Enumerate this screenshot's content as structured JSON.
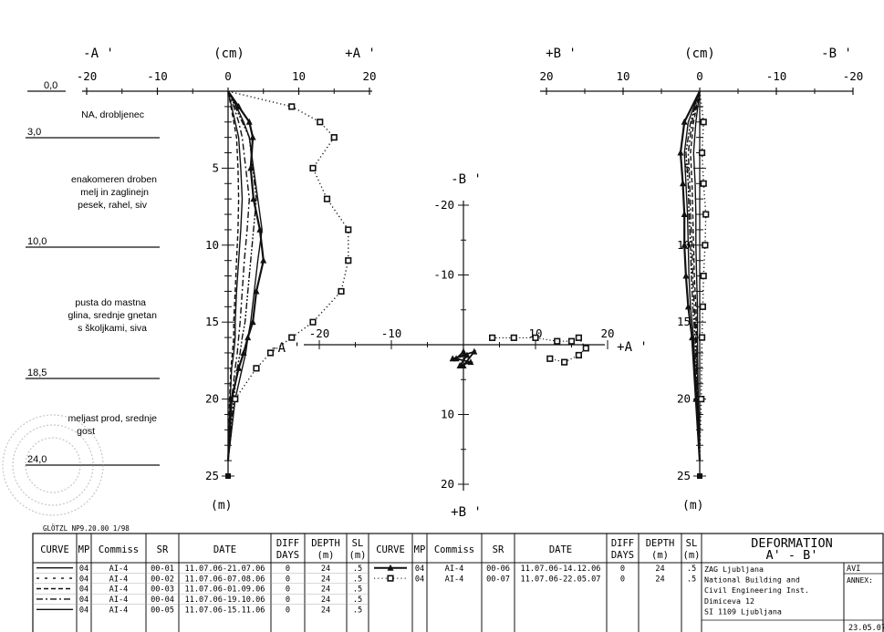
{
  "chart_data": [
    {
      "panel": "profile-A",
      "type": "line",
      "top_labels": {
        "left": "-A '",
        "unit": "(cm)",
        "right": "+A '"
      },
      "x_ticks": [
        "-20",
        "-10",
        "0",
        "10",
        "20"
      ],
      "y_ticks": [
        "5",
        "10",
        "15",
        "20",
        "25"
      ],
      "y_unit": "(m)",
      "xlim": [
        -20,
        20
      ],
      "ylim": [
        0,
        25
      ],
      "x_axis_at_depth": 0,
      "series": [
        {
          "name": "00-01",
          "style": "solid",
          "x": [
            0,
            0.5,
            1,
            1.5,
            1.8,
            2,
            1.8,
            1.5,
            1.2,
            1,
            1,
            0.8,
            0.5,
            0.3,
            0
          ],
          "y": [
            0,
            1,
            2,
            3,
            5,
            7,
            9,
            11,
            13,
            15,
            16,
            17,
            18,
            20,
            24
          ]
        },
        {
          "name": "00-02",
          "style": "dashed",
          "x": [
            0,
            0.4,
            0.8,
            1.2,
            1.4,
            1.5,
            1.4,
            1.2,
            1,
            0.8,
            0.8,
            0.6,
            0.4,
            0.2,
            0
          ],
          "y": [
            0,
            1,
            2,
            3,
            5,
            7,
            9,
            11,
            13,
            15,
            16,
            17,
            18,
            20,
            24
          ]
        },
        {
          "name": "00-03",
          "style": "dashdot",
          "x": [
            0,
            0.8,
            1.5,
            2,
            2.5,
            3,
            2.7,
            2.3,
            2,
            1.7,
            1.5,
            1.3,
            1,
            0.5,
            0
          ],
          "y": [
            0,
            1,
            2,
            3,
            5,
            7,
            9,
            11,
            13,
            15,
            16,
            17,
            18,
            20,
            24
          ]
        },
        {
          "name": "00-04",
          "style": "dashdotdot",
          "x": [
            0,
            1,
            2,
            3,
            3.5,
            4,
            3.6,
            3.2,
            2.8,
            2.4,
            2,
            1.7,
            1.3,
            0.8,
            0
          ],
          "y": [
            0,
            1,
            2,
            3,
            5,
            7,
            9,
            11,
            13,
            15,
            16,
            17,
            18,
            20,
            24
          ]
        },
        {
          "name": "00-05",
          "style": "solid",
          "x": [
            0,
            1.2,
            2.2,
            3,
            3.6,
            4.2,
            4.8,
            4.2,
            3.7,
            3.2,
            2.8,
            2.5,
            2,
            1,
            0
          ],
          "y": [
            0,
            1,
            2,
            3,
            5,
            7,
            9,
            11,
            13,
            15,
            16,
            17,
            18,
            20,
            24
          ]
        },
        {
          "name": "00-06",
          "style": "solid",
          "marker": "triangle",
          "x": [
            0,
            1.5,
            3,
            3.5,
            3.2,
            3.6,
            4.5,
            5,
            4,
            3.5,
            2.8,
            2.2,
            1.5,
            0.5,
            0
          ],
          "y": [
            0,
            1,
            2,
            3,
            5,
            7,
            9,
            11,
            13,
            15,
            16,
            17,
            18,
            20,
            24
          ]
        },
        {
          "name": "00-07",
          "style": "dotted",
          "marker": "square",
          "x": [
            0,
            9,
            13,
            15,
            12,
            14,
            17,
            17,
            16,
            12,
            9,
            6,
            4,
            1,
            0
          ],
          "y": [
            0,
            1,
            2,
            3,
            5,
            7,
            9,
            11,
            13,
            15,
            16,
            17,
            18,
            20,
            24
          ]
        }
      ]
    },
    {
      "panel": "profile-B",
      "type": "line",
      "top_labels": {
        "left": "+B '",
        "unit": "(cm)",
        "right": "-B '"
      },
      "x_ticks": [
        "20",
        "10",
        "0",
        "-10",
        "-20"
      ],
      "y_ticks": [
        "5",
        "10",
        "15",
        "20",
        "25"
      ],
      "y_unit": "(m)",
      "xlim": [
        20,
        -20
      ],
      "ylim": [
        0,
        25
      ],
      "series": [
        {
          "name": "00-01",
          "style": "solid",
          "x": [
            0,
            0.5,
            0.8,
            0.6,
            0.5,
            0.5,
            0.4,
            0.3,
            0.3,
            0.2,
            0
          ],
          "y": [
            0,
            2,
            4,
            6,
            8,
            10,
            12,
            14,
            16,
            20,
            24
          ]
        },
        {
          "name": "00-02",
          "style": "dashed",
          "x": [
            0,
            0.8,
            1.2,
            1,
            0.9,
            0.8,
            0.7,
            0.5,
            0.4,
            0.2,
            0
          ],
          "y": [
            0,
            2,
            4,
            6,
            8,
            10,
            12,
            14,
            16,
            20,
            24
          ]
        },
        {
          "name": "00-03",
          "style": "dashdot",
          "x": [
            0,
            1,
            1.5,
            1.3,
            1.2,
            1,
            0.9,
            0.7,
            0.5,
            0.3,
            0
          ],
          "y": [
            0,
            2,
            4,
            6,
            8,
            10,
            12,
            14,
            16,
            20,
            24
          ]
        },
        {
          "name": "00-04",
          "style": "dashdotdot",
          "x": [
            0,
            1.2,
            1.8,
            1.5,
            1.4,
            1.2,
            1.1,
            0.9,
            0.6,
            0.3,
            0
          ],
          "y": [
            0,
            2,
            4,
            6,
            8,
            10,
            12,
            14,
            16,
            20,
            24
          ]
        },
        {
          "name": "00-05",
          "style": "solid",
          "x": [
            0,
            1.5,
            2,
            1.8,
            1.6,
            1.5,
            1.4,
            1.2,
            0.8,
            0.4,
            0
          ],
          "y": [
            0,
            2,
            4,
            6,
            8,
            10,
            12,
            14,
            16,
            20,
            24
          ]
        },
        {
          "name": "00-06",
          "style": "solid",
          "marker": "triangle",
          "x": [
            0,
            2,
            2.5,
            2.2,
            2,
            2,
            1.8,
            1.5,
            1,
            0.5,
            0
          ],
          "y": [
            0,
            2,
            4,
            6,
            8,
            10,
            12,
            14,
            16,
            20,
            24
          ]
        },
        {
          "name": "00-07",
          "style": "dotted",
          "marker": "square",
          "x": [
            0,
            -0.5,
            -0.3,
            -0.5,
            -0.8,
            -0.7,
            -0.5,
            -0.4,
            -0.3,
            -0.2,
            0
          ],
          "y": [
            0,
            2,
            4,
            6,
            8,
            10,
            12,
            14,
            16,
            20,
            24
          ]
        }
      ]
    },
    {
      "panel": "plan-view",
      "type": "scatter",
      "labels": {
        "top": "-B '",
        "bottom": "+B '",
        "left": "-A '",
        "right": "+A '"
      },
      "x_ticks": [
        "-20",
        "-10",
        "10",
        "20"
      ],
      "y_ticks": [
        "-20",
        "-10",
        "10",
        "20"
      ],
      "xlim": [
        -25,
        25
      ],
      "ylim": [
        -25,
        25
      ],
      "series": [
        {
          "name": "00-06",
          "marker": "triangle",
          "x": [
            0,
            -1,
            1,
            -0.5,
            0.5,
            -1.5,
            1.5,
            0
          ],
          "y": [
            1,
            2,
            2.5,
            3,
            1.5,
            2,
            1,
            3
          ]
        },
        {
          "name": "00-07",
          "marker": "square",
          "x": [
            4,
            7,
            10,
            13,
            15,
            16,
            17,
            16,
            14,
            12
          ],
          "y": [
            -1,
            -1,
            -1,
            -0.5,
            -0.5,
            -1,
            0.5,
            1.5,
            2.5,
            2
          ]
        }
      ]
    }
  ],
  "soil": {
    "depths": [
      "0,0",
      "3,0",
      "10,0",
      "18,5",
      "24,0"
    ],
    "descriptions": [
      [
        "NA, drobljenec"
      ],
      [
        "enakomeren droben",
        "melj in zaglinejn",
        "pesek, rahel, siv"
      ],
      [
        "pusta do mastna",
        "glina, srednje gnetan",
        "s školjkami, siva"
      ],
      [
        "meljast prod, srednje",
        "gost"
      ]
    ]
  },
  "footer_code": "GLÖTZL NP9.20.00  1/98",
  "table": {
    "headers": [
      "CURVE",
      "MP",
      "Commiss",
      "SR",
      "DATE",
      "DIFF DAYS",
      "DEPTH (m)",
      "SL (m)"
    ],
    "left_rows": [
      {
        "curve": "solid",
        "mp": "04",
        "commiss": "AI-4",
        "sr": "00-01",
        "date": "11.07.06-21.07.06",
        "diff": "0",
        "depth": "24",
        "sl": ".5"
      },
      {
        "curve": "dashed-short",
        "mp": "04",
        "commiss": "AI-4",
        "sr": "00-02",
        "date": "11.07.06-07.08.06",
        "diff": "0",
        "depth": "24",
        "sl": ".5"
      },
      {
        "curve": "dashed",
        "mp": "04",
        "commiss": "AI-4",
        "sr": "00-03",
        "date": "11.07.06-01.09.06",
        "diff": "0",
        "depth": "24",
        "sl": ".5"
      },
      {
        "curve": "dashdot",
        "mp": "04",
        "commiss": "AI-4",
        "sr": "00-04",
        "date": "11.07.06-19.10.06",
        "diff": "0",
        "depth": "24",
        "sl": ".5"
      },
      {
        "curve": "solid",
        "mp": "04",
        "commiss": "AI-4",
        "sr": "00-05",
        "date": "11.07.06-15.11.06",
        "diff": "0",
        "depth": "24",
        "sl": ".5"
      }
    ],
    "right_rows": [
      {
        "curve": "triangle",
        "mp": "04",
        "commiss": "AI-4",
        "sr": "00-06",
        "date": "11.07.06-14.12.06",
        "diff": "0",
        "depth": "24",
        "sl": ".5"
      },
      {
        "curve": "square",
        "mp": "04",
        "commiss": "AI-4",
        "sr": "00-07",
        "date": "11.07.06-22.05.07",
        "diff": "0",
        "depth": "24",
        "sl": ".5"
      }
    ],
    "title_block": {
      "title": "DEFORMATION",
      "subtitle": "A'  -  B'",
      "project": "AVI",
      "annex_label": "ANNEX:",
      "company": [
        "ZAG Ljubljana",
        "National Building and",
        "Civil Engineering Inst.",
        "Dimiceva 12",
        "SI 1109 Ljubljana"
      ],
      "date": "23.05.07"
    }
  }
}
